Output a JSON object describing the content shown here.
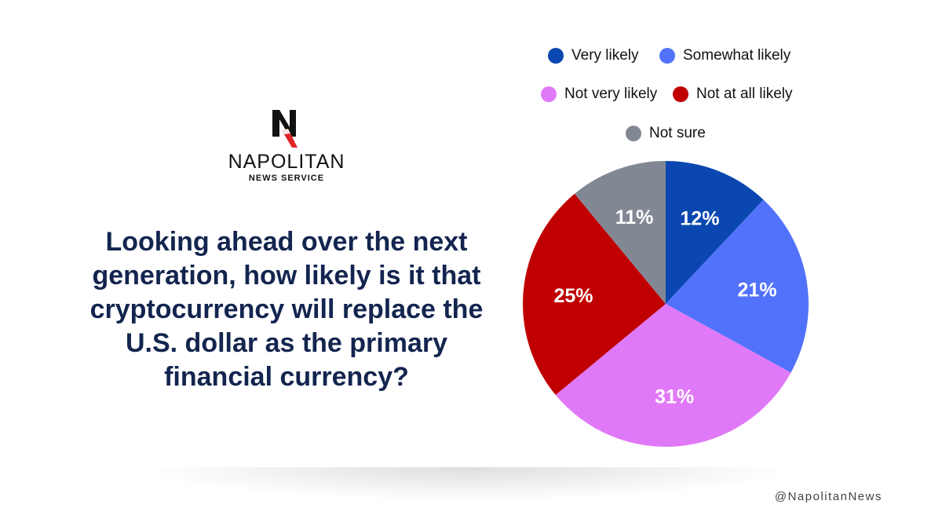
{
  "logo": {
    "name": "NAPOLITAN",
    "subtitle": "NEWS SERVICE"
  },
  "question": "Looking ahead over the next generation, how likely is it that cryptocurrency will replace the U.S. dollar as the primary financial currency?",
  "footer": {
    "handle": "@NapolitanNews"
  },
  "colors": {
    "very_likely": "#0a47b0",
    "somewhat_likely": "#5272fb",
    "not_very_likely": "#e079f7",
    "not_at_all_likely": "#c00000",
    "not_sure": "#818894",
    "question_text": "#13254f",
    "logo_accent": "#e0242a"
  },
  "chart_data": {
    "type": "pie",
    "title": "",
    "legend_position": "top",
    "slices": [
      {
        "label": "Very likely",
        "value": 12,
        "display": "12%",
        "color": "#0a47b0"
      },
      {
        "label": "Somewhat likely",
        "value": 21,
        "display": "21%",
        "color": "#5272fb"
      },
      {
        "label": "Not very likely",
        "value": 31,
        "display": "31%",
        "color": "#e079f7"
      },
      {
        "label": "Not at all likely",
        "value": 25,
        "display": "25%",
        "color": "#c00000"
      },
      {
        "label": "Not sure",
        "value": 11,
        "display": "11%",
        "color": "#818894"
      }
    ]
  }
}
